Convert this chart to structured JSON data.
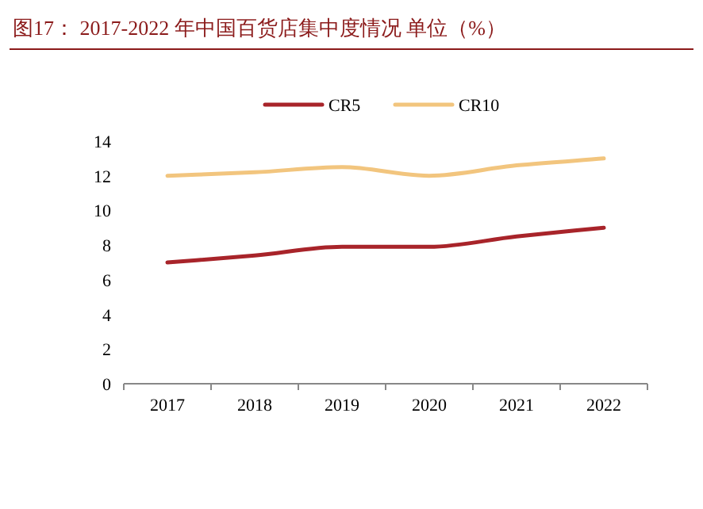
{
  "chart_data": {
    "type": "line",
    "title": "图17： 2017-2022 年中国百货店集中度情况 单位（%）",
    "categories": [
      "2017",
      "2018",
      "2019",
      "2020",
      "2021",
      "2022"
    ],
    "series": [
      {
        "name": "CR5",
        "color": "#a8242a",
        "values": [
          7.0,
          7.4,
          7.9,
          7.9,
          8.5,
          9.0
        ]
      },
      {
        "name": "CR10",
        "color": "#f2c57e",
        "values": [
          12.0,
          12.2,
          12.5,
          12.0,
          12.6,
          13.0
        ]
      }
    ],
    "ylim": [
      0,
      14
    ],
    "yticks": [
      0,
      2,
      4,
      6,
      8,
      10,
      12,
      14
    ],
    "legend": "top",
    "marker": "none",
    "line_style": "solid"
  }
}
